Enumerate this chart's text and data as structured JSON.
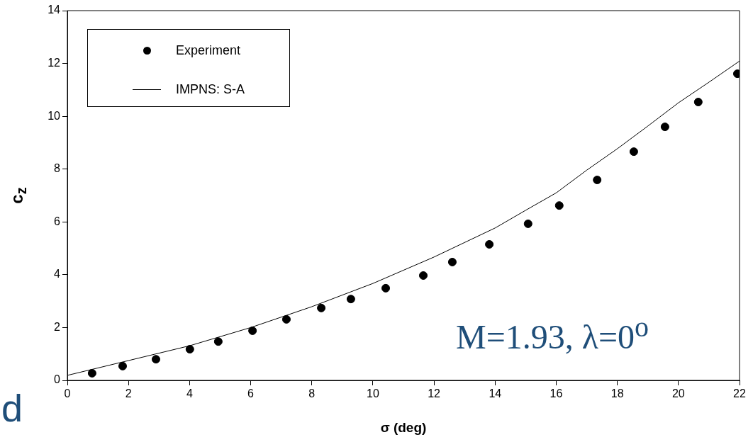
{
  "chart_data": {
    "type": "scatter",
    "xlabel": "σ (deg)",
    "ylabel": "c$_{z}$",
    "xlim": [
      0,
      22
    ],
    "xticks": [
      0,
      2,
      4,
      6,
      8,
      10,
      12,
      14,
      16,
      18,
      20,
      22
    ],
    "ylim": [
      0,
      14
    ],
    "yticks": [
      0,
      2,
      4,
      6,
      8,
      10,
      12,
      14
    ],
    "grid": false,
    "legend": "top left",
    "marker": "circle",
    "annotations": [
      "M=1.93, λ=0$^{o}$",
      "d"
    ],
    "series": [
      {
        "name": "Experiment",
        "color": "#000000",
        "x": [
          0.81,
          1.81,
          2.9,
          4.01,
          4.94,
          6.06,
          7.17,
          8.31,
          9.28,
          10.42,
          11.65,
          12.6,
          13.81,
          15.08,
          16.1,
          17.34,
          18.54,
          19.56,
          20.65,
          21.93
        ],
        "values": [
          0.27,
          0.54,
          0.8,
          1.18,
          1.47,
          1.88,
          2.31,
          2.74,
          3.08,
          3.49,
          3.97,
          4.48,
          5.15,
          5.93,
          6.62,
          7.59,
          8.66,
          9.6,
          10.54,
          11.61
        ]
      },
      {
        "name": "IMPNS: S-A",
        "type": "line",
        "color": "#000000",
        "line_style": "solid",
        "marker": "none",
        "x": [
          0,
          2,
          4,
          6,
          8,
          10,
          12,
          14,
          15,
          16,
          17,
          18,
          19,
          20,
          21,
          22
        ],
        "values": [
          0.19,
          0.75,
          1.31,
          2.0,
          2.79,
          3.67,
          4.67,
          5.77,
          6.44,
          7.1,
          7.96,
          8.77,
          9.63,
          10.51,
          11.29,
          12.09
        ]
      }
    ]
  }
}
